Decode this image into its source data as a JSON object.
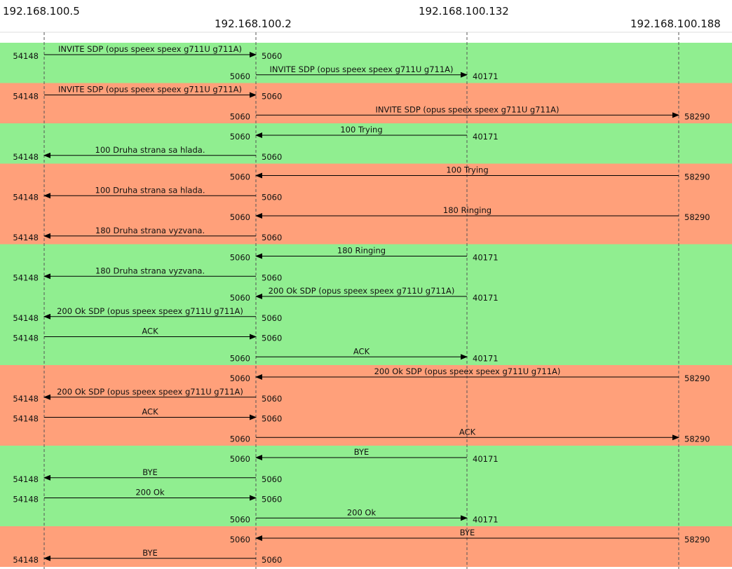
{
  "hosts": [
    {
      "id": "h0",
      "label": "192.168.100.5"
    },
    {
      "id": "h1",
      "label": "192.168.100.2"
    },
    {
      "id": "h2",
      "label": "192.168.100.132"
    },
    {
      "id": "h3",
      "label": "192.168.100.188"
    }
  ],
  "colors": {
    "green_band": "#90EE90",
    "orange_band": "#FFA07A",
    "line": "#000000",
    "lifeline": "#555555"
  },
  "bands": [
    {
      "color": "green",
      "rows": 2
    },
    {
      "color": "orange",
      "rows": 2
    },
    {
      "color": "green",
      "rows": 2
    },
    {
      "color": "orange",
      "rows": 4
    },
    {
      "color": "green",
      "rows": 6
    },
    {
      "color": "orange",
      "rows": 4
    },
    {
      "color": "green",
      "rows": 4
    },
    {
      "color": "orange",
      "rows": 2
    }
  ],
  "messages": [
    {
      "from": 0,
      "to": 1,
      "label": "INVITE SDP (opus speex speex g711U g711A)",
      "from_port": "54148",
      "to_port": "5060"
    },
    {
      "from": 1,
      "to": 2,
      "label": "INVITE SDP (opus speex speex g711U g711A)",
      "from_port": "5060",
      "to_port": "40171"
    },
    {
      "from": 0,
      "to": 1,
      "label": "INVITE SDP (opus speex speex g711U g711A)",
      "from_port": "54148",
      "to_port": "5060"
    },
    {
      "from": 1,
      "to": 3,
      "label": "INVITE SDP (opus speex speex g711U g711A)",
      "from_port": "5060",
      "to_port": "58290"
    },
    {
      "from": 2,
      "to": 1,
      "label": "100 Trying",
      "from_port": "40171",
      "to_port": "5060"
    },
    {
      "from": 1,
      "to": 0,
      "label": "100 Druha strana sa hlada.",
      "from_port": "5060",
      "to_port": "54148"
    },
    {
      "from": 3,
      "to": 1,
      "label": "100 Trying",
      "from_port": "58290",
      "to_port": "5060"
    },
    {
      "from": 1,
      "to": 0,
      "label": "100 Druha strana sa hlada.",
      "from_port": "5060",
      "to_port": "54148"
    },
    {
      "from": 3,
      "to": 1,
      "label": "180 Ringing",
      "from_port": "58290",
      "to_port": "5060"
    },
    {
      "from": 1,
      "to": 0,
      "label": "180 Druha strana vyzvana.",
      "from_port": "5060",
      "to_port": "54148"
    },
    {
      "from": 2,
      "to": 1,
      "label": "180 Ringing",
      "from_port": "40171",
      "to_port": "5060"
    },
    {
      "from": 1,
      "to": 0,
      "label": "180 Druha strana vyzvana.",
      "from_port": "5060",
      "to_port": "54148"
    },
    {
      "from": 2,
      "to": 1,
      "label": "200 Ok SDP (opus speex speex g711U g711A)",
      "from_port": "40171",
      "to_port": "5060"
    },
    {
      "from": 1,
      "to": 0,
      "label": "200 Ok SDP (opus speex speex g711U g711A)",
      "from_port": "5060",
      "to_port": "54148"
    },
    {
      "from": 0,
      "to": 1,
      "label": "ACK",
      "from_port": "54148",
      "to_port": "5060"
    },
    {
      "from": 1,
      "to": 2,
      "label": "ACK",
      "from_port": "5060",
      "to_port": "40171"
    },
    {
      "from": 3,
      "to": 1,
      "label": "200 Ok SDP (opus speex speex g711U g711A)",
      "from_port": "58290",
      "to_port": "5060"
    },
    {
      "from": 1,
      "to": 0,
      "label": "200 Ok SDP (opus speex speex g711U g711A)",
      "from_port": "5060",
      "to_port": "54148"
    },
    {
      "from": 0,
      "to": 1,
      "label": "ACK",
      "from_port": "54148",
      "to_port": "5060"
    },
    {
      "from": 1,
      "to": 3,
      "label": "ACK",
      "from_port": "5060",
      "to_port": "58290"
    },
    {
      "from": 2,
      "to": 1,
      "label": "BYE",
      "from_port": "40171",
      "to_port": "5060"
    },
    {
      "from": 1,
      "to": 0,
      "label": "BYE",
      "from_port": "5060",
      "to_port": "54148"
    },
    {
      "from": 0,
      "to": 1,
      "label": "200 Ok",
      "from_port": "54148",
      "to_port": "5060"
    },
    {
      "from": 1,
      "to": 2,
      "label": "200 Ok",
      "from_port": "5060",
      "to_port": "40171"
    },
    {
      "from": 3,
      "to": 1,
      "label": "BYE",
      "from_port": "58290",
      "to_port": "5060"
    },
    {
      "from": 1,
      "to": 0,
      "label": "BYE",
      "from_port": "5060",
      "to_port": "54148"
    }
  ]
}
